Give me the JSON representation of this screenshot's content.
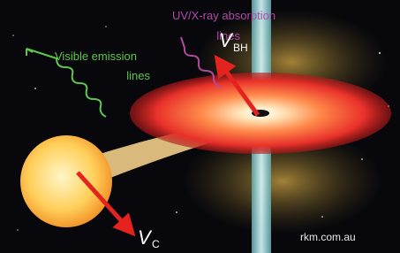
{
  "labels": {
    "absorption": [
      "UV/X-ray absorption",
      "lines"
    ],
    "emission": [
      "Visible emission",
      "lines"
    ],
    "v_bh": {
      "symbol": "V",
      "subscript": "BH"
    },
    "v_c": {
      "symbol": "V",
      "subscript": "C"
    },
    "credit": "rkm.com.au"
  }
}
